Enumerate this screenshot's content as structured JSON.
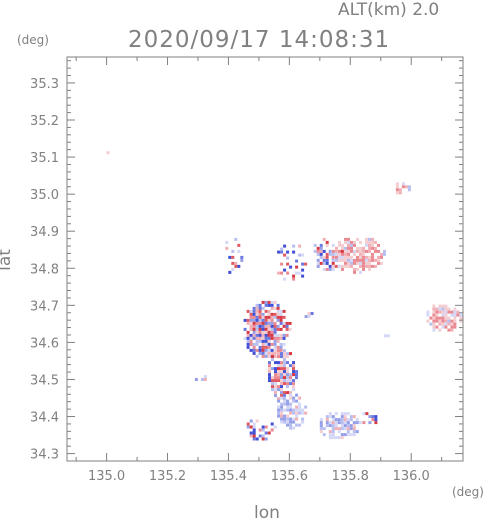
{
  "header": {
    "altitude_label": "ALT(km)  2.0",
    "datetime": "2020/09/17 14:08:31"
  },
  "chart_data": {
    "type": "heatmap",
    "title": "2020/09/17 14:08:31",
    "subtitle": "ALT(km)  2.0",
    "xlabel": "lon",
    "ylabel": "lat",
    "x_unit": "(deg)",
    "y_unit": "(deg)",
    "xlim": [
      134.87,
      136.17
    ],
    "ylim": [
      34.28,
      35.37
    ],
    "x_ticks": [
      135.0,
      135.2,
      135.4,
      135.6,
      135.8,
      136.0
    ],
    "x_tick_labels": [
      "135.0",
      "135.2",
      "135.4",
      "135.6",
      "135.8",
      "136.0"
    ],
    "y_ticks": [
      34.3,
      34.4,
      34.5,
      34.6,
      34.7,
      34.8,
      34.9,
      35.0,
      35.1,
      35.2,
      35.3
    ],
    "y_tick_labels": [
      "34.3",
      "34.4",
      "34.5",
      "34.6",
      "34.7",
      "34.8",
      "34.9",
      "35.0",
      "35.1",
      "35.2",
      "35.3"
    ],
    "grid": false,
    "colors": {
      "positive": "#e03a3a",
      "negative": "#3a4fe0",
      "axis": "#808080"
    },
    "echo_regions": [
      {
        "lon": 135.52,
        "lat": 34.64,
        "rlon": 0.08,
        "rlat": 0.08,
        "tone": "mixed",
        "density": 0.85
      },
      {
        "lon": 135.57,
        "lat": 34.52,
        "rlon": 0.05,
        "rlat": 0.07,
        "tone": "mixed",
        "density": 0.8
      },
      {
        "lon": 135.6,
        "lat": 34.42,
        "rlon": 0.05,
        "rlat": 0.05,
        "tone": "negative",
        "density": 0.75
      },
      {
        "lon": 135.76,
        "lat": 34.38,
        "rlon": 0.07,
        "rlat": 0.04,
        "tone": "negative",
        "density": 0.8
      },
      {
        "lon": 135.82,
        "lat": 34.84,
        "rlon": 0.09,
        "rlat": 0.05,
        "tone": "positive",
        "density": 0.8
      },
      {
        "lon": 135.72,
        "lat": 34.84,
        "rlon": 0.05,
        "rlat": 0.05,
        "tone": "mixed",
        "density": 0.45
      },
      {
        "lon": 136.1,
        "lat": 34.67,
        "rlon": 0.06,
        "rlat": 0.04,
        "tone": "positive",
        "density": 0.85
      },
      {
        "lon": 135.97,
        "lat": 35.02,
        "rlon": 0.03,
        "rlat": 0.02,
        "tone": "positive",
        "density": 0.75
      },
      {
        "lon": 135.5,
        "lat": 34.37,
        "rlon": 0.05,
        "rlat": 0.03,
        "tone": "mixed",
        "density": 0.4
      },
      {
        "lon": 135.41,
        "lat": 34.84,
        "rlon": 0.04,
        "rlat": 0.05,
        "tone": "mixed",
        "density": 0.3
      },
      {
        "lon": 135.6,
        "lat": 34.82,
        "rlon": 0.05,
        "rlat": 0.06,
        "tone": "mixed",
        "density": 0.3
      },
      {
        "lon": 135.31,
        "lat": 34.51,
        "rlon": 0.03,
        "rlat": 0.01,
        "tone": "negative",
        "density": 0.7
      },
      {
        "lon": 135.66,
        "lat": 34.68,
        "rlon": 0.02,
        "rlat": 0.01,
        "tone": "mixed",
        "density": 0.6
      },
      {
        "lon": 135.86,
        "lat": 34.4,
        "rlon": 0.03,
        "rlat": 0.02,
        "tone": "mixed",
        "density": 0.5
      },
      {
        "lon": 135.91,
        "lat": 34.62,
        "rlon": 0.01,
        "rlat": 0.01,
        "tone": "negative",
        "density": 0.7
      },
      {
        "lon": 135.0,
        "lat": 35.12,
        "rlon": 0.01,
        "rlat": 0.02,
        "tone": "positive",
        "density": 0.6
      }
    ]
  }
}
